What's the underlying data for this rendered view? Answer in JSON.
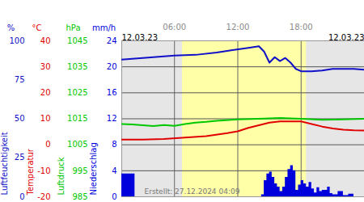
{
  "chart_data": {
    "type": "line",
    "date_labels": [
      "12.03.23",
      "12.03.23"
    ],
    "caption": "Erstellt: 27.12.2024 04:09",
    "daylight": [
      6.75,
      18.5
    ],
    "grid": true,
    "xlim": [
      1,
      24
    ],
    "xticks": [
      {
        "value": 6,
        "label": "06:00"
      },
      {
        "value": 12,
        "label": "12:00"
      },
      {
        "value": 18,
        "label": "18:00"
      }
    ],
    "series": [
      {
        "name": "Luftfeuchtigkeit",
        "unit": "%",
        "type": "line",
        "color": "#1010c8",
        "ylim": [
          0,
          100
        ],
        "yticks": [
          0,
          25,
          50,
          75,
          100
        ],
        "x": [
          1,
          3,
          5,
          6,
          8,
          10,
          11.5,
          13,
          14,
          14.5,
          15,
          15.5,
          16,
          16.5,
          17,
          17.5,
          18,
          19,
          20,
          21,
          22,
          23,
          24
        ],
        "values": [
          88,
          89,
          90,
          90.5,
          91,
          92.5,
          94,
          95.5,
          96.5,
          93,
          86,
          89.5,
          87,
          89,
          86,
          82,
          80.5,
          80.5,
          81,
          82,
          82,
          82,
          81.5
        ]
      },
      {
        "name": "Temperatur",
        "unit": "°C",
        "type": "line",
        "color": "#e00000",
        "ylim": [
          -20,
          40
        ],
        "yticks": [
          -20,
          -10,
          0,
          10,
          20,
          30,
          40
        ],
        "x": [
          1,
          3,
          5,
          7,
          9,
          11,
          12,
          13,
          14,
          15,
          16,
          17,
          18,
          19,
          20,
          21,
          22,
          23,
          24
        ],
        "values": [
          2,
          2,
          2.2,
          2.8,
          3.3,
          4.5,
          5.2,
          6.5,
          7.5,
          8.5,
          9,
          9,
          9,
          8,
          7,
          6.3,
          5.8,
          5.6,
          5.5
        ]
      },
      {
        "name": "Luftdruck",
        "unit": "hPa",
        "type": "line",
        "color": "#00c800",
        "ylim": [
          985,
          1045
        ],
        "yticks": [
          985,
          995,
          1005,
          1015,
          1025,
          1035,
          1045
        ],
        "x": [
          1,
          2,
          3,
          4,
          5,
          6,
          7,
          8,
          9,
          10,
          12,
          14,
          16,
          18,
          20,
          22,
          24
        ],
        "values": [
          1013,
          1012.8,
          1012.5,
          1012.2,
          1012.6,
          1012.3,
          1013,
          1013.5,
          1013.8,
          1014.2,
          1014.8,
          1015,
          1015.3,
          1015,
          1014.6,
          1014.8,
          1015
        ]
      },
      {
        "name": "Niederschlag",
        "unit": "mm/h",
        "type": "area",
        "color": "#0000dd",
        "ylim": [
          0,
          24
        ],
        "yticks": [
          0,
          4,
          8,
          12,
          16,
          20,
          24
        ],
        "x": [
          1,
          1.5,
          2,
          2.25,
          14,
          14.25,
          14.5,
          14.75,
          15,
          15.25,
          15.5,
          15.75,
          16,
          16.25,
          16.5,
          16.75,
          17,
          17.25,
          17.5,
          17.75,
          18,
          18.25,
          18.5,
          18.75,
          19,
          19.25,
          19.5,
          19.75,
          20,
          20.5,
          20.75,
          21,
          21.5,
          22,
          22.5,
          23,
          24
        ],
        "values": [
          3.5,
          3.5,
          3.5,
          0,
          0,
          0.3,
          2.5,
          3.5,
          3.8,
          3,
          2,
          1.5,
          0.8,
          1.5,
          3,
          4.2,
          4.8,
          4,
          1,
          1.8,
          2.5,
          2,
          1.5,
          2.2,
          1.2,
          0.6,
          1.4,
          0.8,
          1,
          1.5,
          0.5,
          0.3,
          0.8,
          0.2,
          0.4,
          0,
          0
        ]
      }
    ]
  }
}
